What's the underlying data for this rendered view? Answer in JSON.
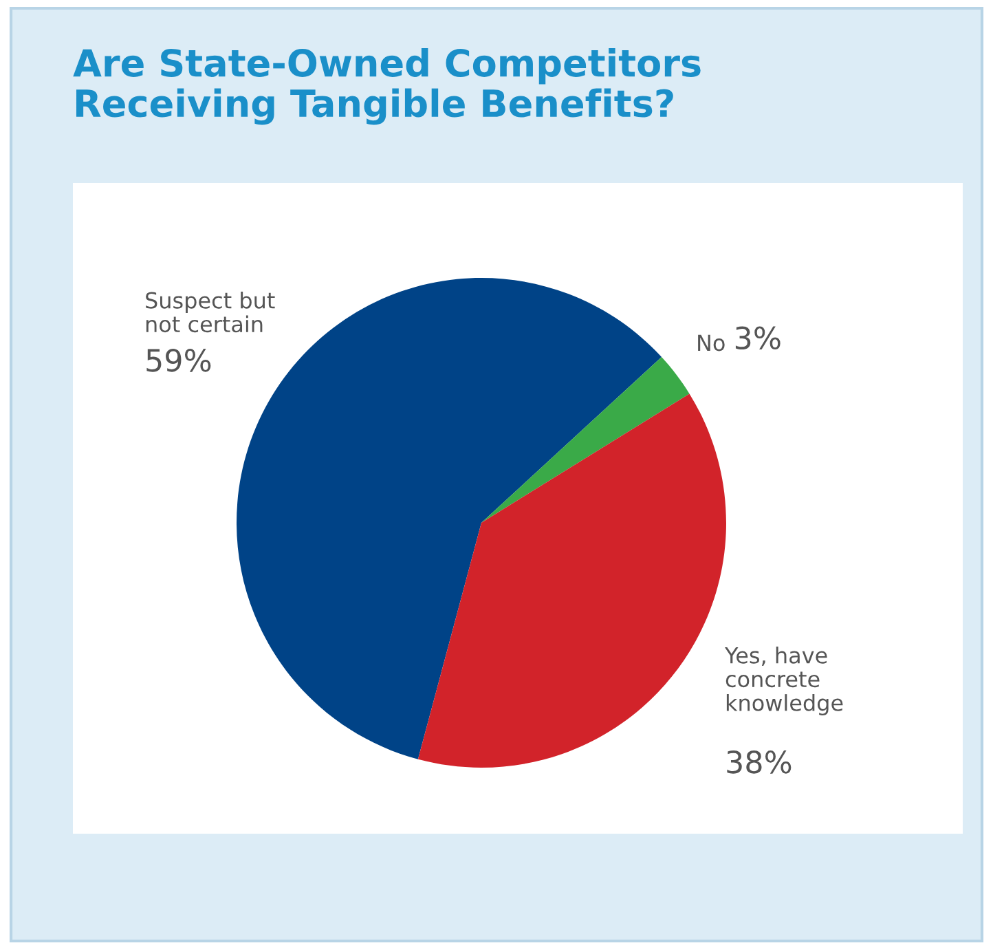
{
  "chart_data": {
    "type": "pie",
    "title": "Are State-Owned Competitors\nReceiving Tangible Benefits?",
    "categories": [
      "Suspect but\nnot certain",
      "No",
      "Yes, have\nconcrete\nknowledge"
    ],
    "values": [
      59,
      3,
      38
    ],
    "value_labels": [
      "59%",
      "3%",
      "38%"
    ],
    "colors": [
      "#004387",
      "#3aaa48",
      "#d2232a"
    ]
  }
}
